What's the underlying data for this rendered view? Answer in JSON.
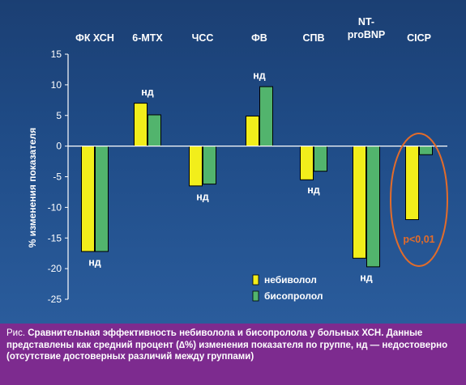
{
  "chart_data": {
    "type": "bar",
    "title": "",
    "xlabel": "",
    "ylabel": "% изменения показателя",
    "ylim": [
      -25,
      15
    ],
    "yticks": [
      -25,
      -20,
      -15,
      -10,
      -5,
      0,
      5,
      10,
      15
    ],
    "grid": false,
    "legend_position": "bottom-right",
    "categories": [
      "ФК ХСН",
      "6-МТХ",
      "ЧСС",
      "ФВ",
      "СПВ",
      "NT-proBNP",
      "CICP"
    ],
    "category_labels": [
      [
        "ФК ХСН"
      ],
      [
        "6-МТХ"
      ],
      [
        "ЧСС"
      ],
      [
        "ФВ"
      ],
      [
        "СПВ"
      ],
      [
        "NT-",
        "proBNP"
      ],
      [
        "CICP"
      ]
    ],
    "series": [
      {
        "name": "небиволол",
        "color": "#f2ee1b",
        "values": [
          -17.2,
          7.0,
          -6.5,
          4.9,
          -5.5,
          -18.3,
          -12.0
        ]
      },
      {
        "name": "бисопролол",
        "color": "#52b46d",
        "values": [
          -17.2,
          5.1,
          -6.2,
          9.7,
          -4.1,
          -19.7,
          -1.4
        ]
      }
    ],
    "annotations": [
      {
        "category": "ФК ХСН",
        "text": "нд",
        "value": -19.0
      },
      {
        "category": "6-МТХ",
        "text": "нд",
        "value": 8.8
      },
      {
        "category": "ЧСС",
        "text": "нд",
        "value": -8.3
      },
      {
        "category": "ФВ",
        "text": "нд",
        "value": 11.5
      },
      {
        "category": "СПВ",
        "text": "нд",
        "value": -7.2
      },
      {
        "category": "NT-proBNP",
        "text": "нд",
        "value": -21.5
      },
      {
        "category": "CICP",
        "text": "p<0,01",
        "value": -15.2,
        "color": "#e36c2a"
      }
    ],
    "highlight": {
      "category": "CICP",
      "shape": "ellipse",
      "color": "#e36c2a"
    }
  },
  "caption": {
    "prefix": "Рис.",
    "text": "Сравнительная эффективность небиволола и бисопролола у больных ХСН. Данные представлены как средний процент (∆%) изменения показателя по группе, нд — недостоверно (отсутствие достоверных различий между группами)"
  },
  "colors": {
    "background": "#1f4b86",
    "axis": "#ffffff",
    "caption_background": "#7d2b8f"
  }
}
